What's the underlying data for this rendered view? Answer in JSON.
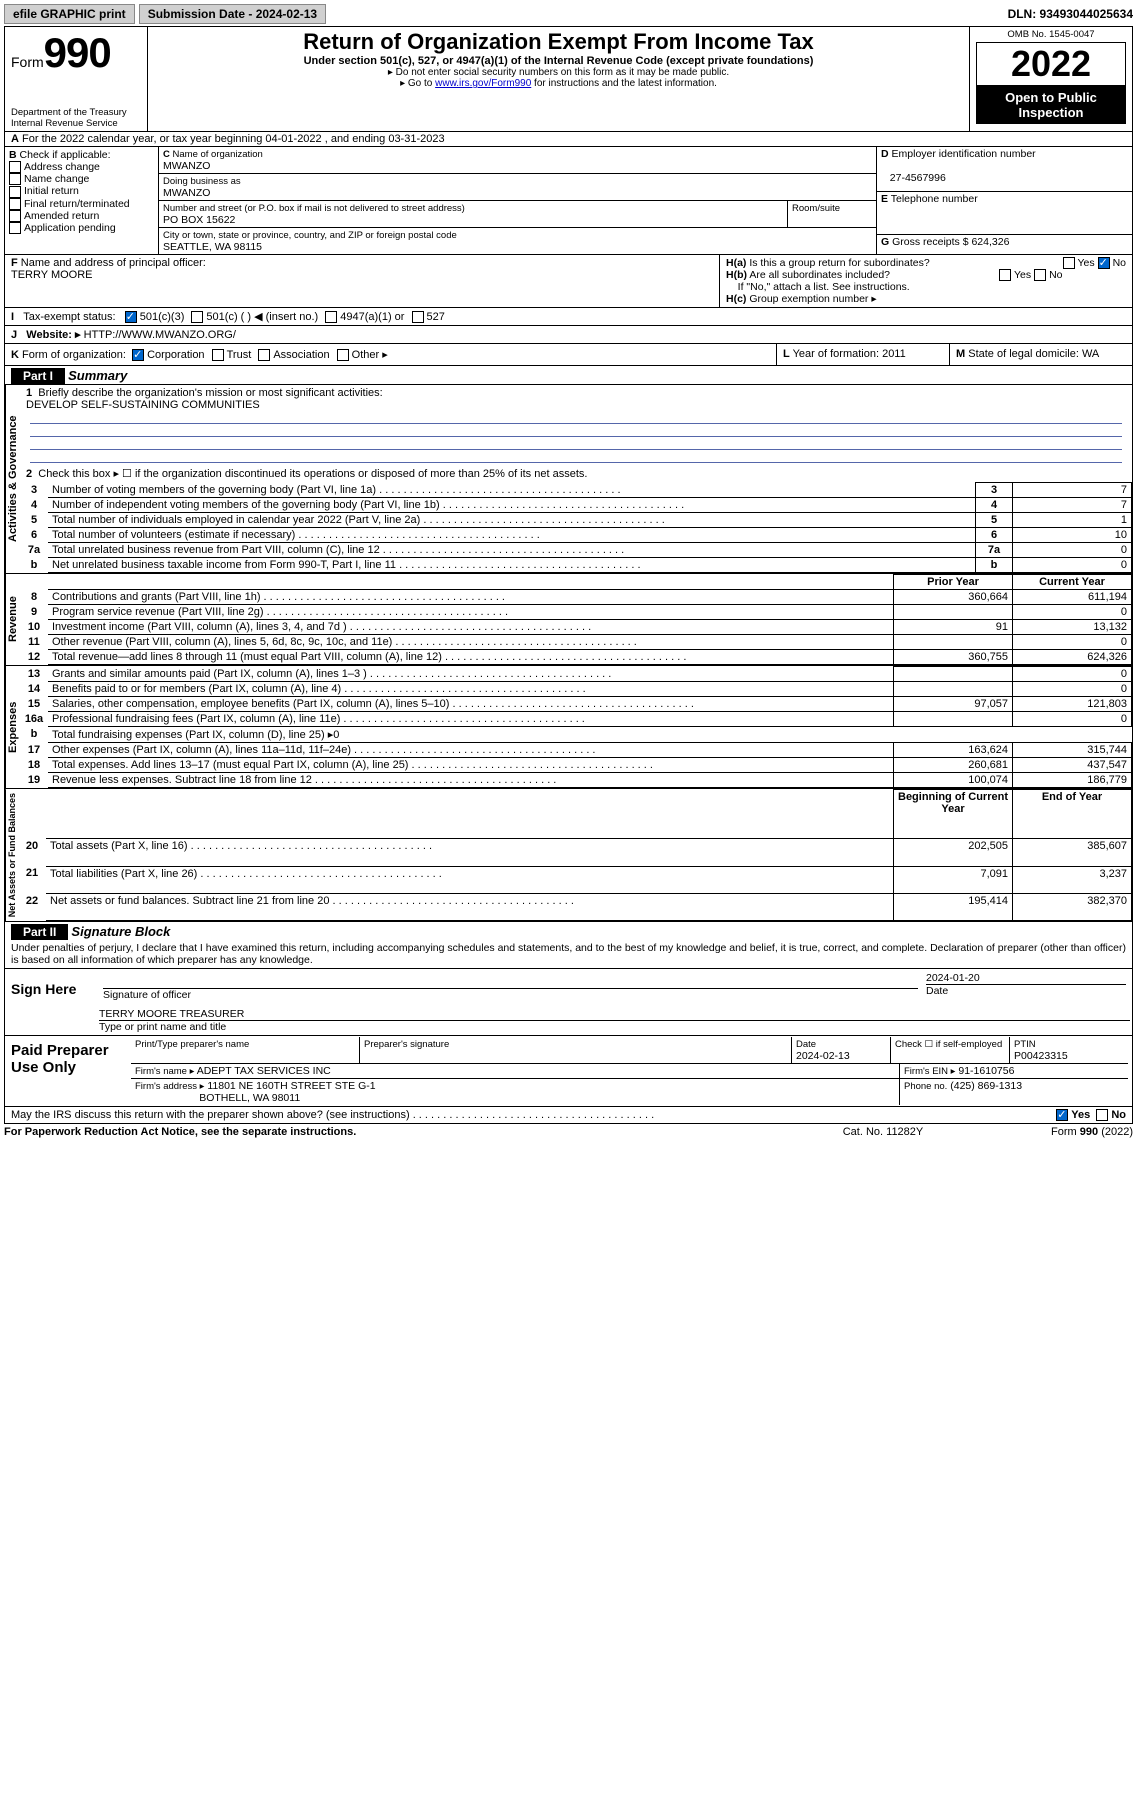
{
  "topbar": {
    "efile": "efile GRAPHIC print",
    "submission_label": "Submission Date - 2024-02-13",
    "dln": "DLN: 93493044025634"
  },
  "header": {
    "form_word": "Form",
    "form_num": "990",
    "dept": "Department of the Treasury",
    "irs": "Internal Revenue Service",
    "title": "Return of Organization Exempt From Income Tax",
    "sub1": "Under section 501(c), 527, or 4947(a)(1) of the Internal Revenue Code (except private foundations)",
    "sub2": "▸ Do not enter social security numbers on this form as it may be made public.",
    "sub3_pre": "▸ Go to ",
    "sub3_link": "www.irs.gov/Form990",
    "sub3_post": " for instructions and the latest information.",
    "omb": "OMB No. 1545-0047",
    "year": "2022",
    "openpub": "Open to Public Inspection"
  },
  "A": {
    "line": "For the 2022 calendar year, or tax year beginning 04-01-2022    , and ending 03-31-2023"
  },
  "B": {
    "label": "Check if applicable:",
    "opts": [
      "Address change",
      "Name change",
      "Initial return",
      "Final return/terminated",
      "Amended return",
      "Application pending"
    ]
  },
  "C": {
    "name_label": "Name of organization",
    "name": "MWANZO",
    "dba_label": "Doing business as",
    "dba": "MWANZO",
    "addr_label": "Number and street (or P.O. box if mail is not delivered to street address)",
    "room_label": "Room/suite",
    "addr": "PO BOX 15622",
    "city_label": "City or town, state or province, country, and ZIP or foreign postal code",
    "city": "SEATTLE, WA   98115"
  },
  "D": {
    "label": "Employer identification number",
    "value": "27-4567996"
  },
  "E": {
    "label": "Telephone number",
    "value": ""
  },
  "G": {
    "label": "Gross receipts $",
    "value": "624,326"
  },
  "F": {
    "label": "Name and address of principal officer:",
    "value": "TERRY MOORE"
  },
  "H": {
    "a": "Is this a group return for subordinates?",
    "b": "Are all subordinates included?",
    "note": "If \"No,\" attach a list. See instructions.",
    "c": "Group exemption number ▸",
    "yes": "Yes",
    "no": "No"
  },
  "I": {
    "label": "Tax-exempt status:",
    "opts": [
      "501(c)(3)",
      "501(c) (   ) ◀ (insert no.)",
      "4947(a)(1) or",
      "527"
    ]
  },
  "J": {
    "label": "Website: ▸",
    "value": "HTTP://WWW.MWANZO.ORG/"
  },
  "K": {
    "label": "Form of organization:",
    "opts": [
      "Corporation",
      "Trust",
      "Association",
      "Other ▸"
    ]
  },
  "L": {
    "label": "Year of formation: 2011"
  },
  "M": {
    "label": "State of legal domicile: WA"
  },
  "part1": {
    "bar": "Part I",
    "title": "Summary",
    "q1": "Briefly describe the organization's mission or most significant activities:",
    "mission": "DEVELOP SELF-SUSTAINING COMMUNITIES",
    "q2": "Check this box ▸ ☐  if the organization discontinued its operations or disposed of more than 25% of its net assets.",
    "side_gov": "Activities & Governance",
    "side_rev": "Revenue",
    "side_exp": "Expenses",
    "side_net": "Net Assets or Fund Balances",
    "col_prior": "Prior Year",
    "col_curr": "Current Year",
    "col_beg": "Beginning of Current Year",
    "col_end": "End of Year",
    "rows_gov": [
      {
        "n": "3",
        "t": "Number of voting members of the governing body (Part VI, line 1a)",
        "v": "7"
      },
      {
        "n": "4",
        "t": "Number of independent voting members of the governing body (Part VI, line 1b)",
        "v": "7"
      },
      {
        "n": "5",
        "t": "Total number of individuals employed in calendar year 2022 (Part V, line 2a)",
        "v": "1"
      },
      {
        "n": "6",
        "t": "Total number of volunteers (estimate if necessary)",
        "v": "10"
      },
      {
        "n": "7a",
        "t": "Total unrelated business revenue from Part VIII, column (C), line 12",
        "v": "0"
      },
      {
        "n": "b",
        "t": "Net unrelated business taxable income from Form 990-T, Part I, line 11",
        "v": "0"
      }
    ],
    "rows_rev": [
      {
        "n": "8",
        "t": "Contributions and grants (Part VIII, line 1h)",
        "p": "360,664",
        "c": "611,194"
      },
      {
        "n": "9",
        "t": "Program service revenue (Part VIII, line 2g)",
        "p": "",
        "c": "0"
      },
      {
        "n": "10",
        "t": "Investment income (Part VIII, column (A), lines 3, 4, and 7d )",
        "p": "91",
        "c": "13,132"
      },
      {
        "n": "11",
        "t": "Other revenue (Part VIII, column (A), lines 5, 6d, 8c, 9c, 10c, and 11e)",
        "p": "",
        "c": "0"
      },
      {
        "n": "12",
        "t": "Total revenue—add lines 8 through 11 (must equal Part VIII, column (A), line 12)",
        "p": "360,755",
        "c": "624,326"
      }
    ],
    "rows_exp": [
      {
        "n": "13",
        "t": "Grants and similar amounts paid (Part IX, column (A), lines 1–3 )",
        "p": "",
        "c": "0"
      },
      {
        "n": "14",
        "t": "Benefits paid to or for members (Part IX, column (A), line 4)",
        "p": "",
        "c": "0"
      },
      {
        "n": "15",
        "t": "Salaries, other compensation, employee benefits (Part IX, column (A), lines 5–10)",
        "p": "97,057",
        "c": "121,803"
      },
      {
        "n": "16a",
        "t": "Professional fundraising fees (Part IX, column (A), line 11e)",
        "p": "",
        "c": "0"
      },
      {
        "n": "b",
        "t": "Total fundraising expenses (Part IX, column (D), line 25) ▸0",
        "p": null,
        "c": null
      },
      {
        "n": "17",
        "t": "Other expenses (Part IX, column (A), lines 11a–11d, 11f–24e)",
        "p": "163,624",
        "c": "315,744"
      },
      {
        "n": "18",
        "t": "Total expenses. Add lines 13–17 (must equal Part IX, column (A), line 25)",
        "p": "260,681",
        "c": "437,547"
      },
      {
        "n": "19",
        "t": "Revenue less expenses. Subtract line 18 from line 12",
        "p": "100,074",
        "c": "186,779"
      }
    ],
    "rows_net": [
      {
        "n": "20",
        "t": "Total assets (Part X, line 16)",
        "p": "202,505",
        "c": "385,607"
      },
      {
        "n": "21",
        "t": "Total liabilities (Part X, line 26)",
        "p": "7,091",
        "c": "3,237"
      },
      {
        "n": "22",
        "t": "Net assets or fund balances. Subtract line 21 from line 20",
        "p": "195,414",
        "c": "382,370"
      }
    ]
  },
  "part2": {
    "bar": "Part II",
    "title": "Signature Block",
    "declaration": "Under penalties of perjury, I declare that I have examined this return, including accompanying schedules and statements, and to the best of my knowledge and belief, it is true, correct, and complete. Declaration of preparer (other than officer) is based on all information of which preparer has any knowledge.",
    "sign_here": "Sign Here",
    "sig_officer": "Signature of officer",
    "date_label": "Date",
    "date_val": "2024-01-20",
    "officer_name": "TERRY MOORE TREASURER",
    "officer_type": "Type or print name and title",
    "paid": "Paid Preparer Use Only",
    "prep_name_label": "Print/Type preparer's name",
    "prep_sig_label": "Preparer's signature",
    "prep_date": "2024-02-13",
    "self_emp": "Check ☐ if self-employed",
    "ptin_label": "PTIN",
    "ptin": "P00423315",
    "firm_name_label": "Firm's name   ▸",
    "firm_name": "ADEPT TAX SERVICES INC",
    "firm_ein_label": "Firm's EIN ▸",
    "firm_ein": "91-1610756",
    "firm_addr_label": "Firm's address ▸",
    "firm_addr1": "11801 NE 160TH STREET STE G-1",
    "firm_addr2": "BOTHELL, WA   98011",
    "phone_label": "Phone no.",
    "phone": "(425) 869-1313",
    "may_irs": "May the IRS discuss this return with the preparer shown above? (see instructions)",
    "footer_left": "For Paperwork Reduction Act Notice, see the separate instructions.",
    "footer_mid": "Cat. No. 11282Y",
    "footer_right": "Form 990 (2022)"
  }
}
